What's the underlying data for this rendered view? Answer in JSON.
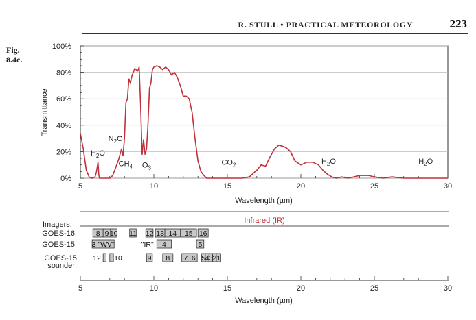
{
  "header": {
    "running_title": "R. STULL • PRACTICAL METEOROLOGY",
    "page_number": "223"
  },
  "figure": {
    "label_line1": "Fig.",
    "label_line2": "8.4c."
  },
  "chart_data": {
    "type": "line",
    "xlabel": "Wavelength (µm)",
    "ylabel": "Transmittance",
    "xlim": [
      5,
      30
    ],
    "ylim": [
      0,
      100
    ],
    "x_ticks": [
      "5",
      "10",
      "15",
      "20",
      "25",
      "30"
    ],
    "y_ticks": [
      "0%",
      "20%",
      "40%",
      "60%",
      "80%",
      "100%"
    ],
    "line_color": "#c0303a",
    "series": [
      {
        "x": [
          5.0,
          5.2,
          5.4,
          5.6,
          5.8,
          6.0,
          6.1,
          6.2,
          6.25,
          6.3,
          6.4,
          6.6,
          6.8,
          7.0,
          7.2,
          7.4,
          7.6,
          7.8,
          7.9,
          8.0,
          8.1,
          8.2,
          8.3,
          8.4,
          8.5,
          8.6,
          8.7,
          8.8,
          8.9,
          9.0,
          9.1,
          9.2,
          9.3,
          9.4,
          9.5,
          9.6,
          9.7,
          9.8,
          9.9,
          10.0,
          10.2,
          10.4,
          10.6,
          10.8,
          11.0,
          11.2,
          11.4,
          11.6,
          11.8,
          12.0,
          12.2,
          12.4,
          12.6,
          12.8,
          13.0,
          13.2,
          13.4,
          13.6,
          13.8,
          14.0,
          14.2,
          14.5,
          15.0,
          16.0,
          16.5,
          17.0,
          17.3,
          17.6,
          17.9,
          18.2,
          18.5,
          18.8,
          19.0,
          19.3,
          19.6,
          20.0,
          20.4,
          20.8,
          21.2,
          21.5,
          21.8,
          22.1,
          22.4,
          22.8,
          23.2,
          23.6,
          24.0,
          24.6,
          25.0,
          25.6,
          26.2,
          27.0,
          28.0,
          29.0,
          30.0
        ],
        "y": [
          34,
          22,
          6,
          1,
          0,
          1,
          5,
          12,
          3,
          0,
          0,
          0,
          0,
          0,
          2,
          8,
          14,
          22,
          17,
          30,
          57,
          60,
          75,
          72,
          77,
          80,
          83,
          82,
          81,
          84,
          55,
          18,
          29,
          18,
          22,
          40,
          68,
          72,
          82,
          84,
          85,
          84,
          82,
          84,
          82,
          78,
          80,
          76,
          70,
          62,
          62,
          60,
          50,
          30,
          13,
          5,
          2,
          0,
          0,
          0,
          0,
          0,
          0,
          0,
          1,
          6,
          10,
          9,
          16,
          22,
          25,
          24,
          23,
          20,
          13,
          10,
          12,
          12,
          10,
          6,
          3,
          1,
          0,
          1,
          0,
          1,
          2,
          2,
          1,
          0,
          1,
          0,
          0,
          0,
          0
        ]
      }
    ],
    "annotations": [
      {
        "text": "H",
        "sub": "2",
        "tail": "O",
        "x": 5.7,
        "y": 17
      },
      {
        "text": "N",
        "sub": "2",
        "tail": "O",
        "x": 6.9,
        "y": 28
      },
      {
        "text": "CH",
        "sub": "4",
        "tail": "",
        "x": 7.6,
        "y": 9
      },
      {
        "text": "O",
        "sub": "3",
        "tail": "",
        "x": 9.2,
        "y": 8
      },
      {
        "text": "CO",
        "sub": "2",
        "tail": "",
        "x": 14.6,
        "y": 10
      },
      {
        "text": "H",
        "sub": "2",
        "tail": "O",
        "x": 21.4,
        "y": 11
      },
      {
        "text": "H",
        "sub": "2",
        "tail": "O",
        "x": 28.0,
        "y": 11
      }
    ]
  },
  "imagers_panel": {
    "title": "Infrared (IR)",
    "imagers_label": "Imagers:",
    "xlabel": "Wavelength (µm)",
    "x_ticks": [
      "5",
      "10",
      "15",
      "20",
      "25",
      "30"
    ],
    "rows": [
      {
        "label": "GOES-16:",
        "bands": [
          {
            "text": "8",
            "x0": 5.85,
            "x1": 6.55,
            "filled": true
          },
          {
            "text": "9",
            "x0": 6.55,
            "x1": 7.05,
            "filled": true
          },
          {
            "text": "10",
            "x0": 7.05,
            "x1": 7.5,
            "filled": true
          },
          {
            "text": "11",
            "x0": 8.35,
            "x1": 8.8,
            "filled": true
          },
          {
            "text": "12",
            "x0": 9.45,
            "x1": 9.95,
            "filled": true
          },
          {
            "text": "13",
            "x0": 10.1,
            "x1": 10.75,
            "filled": true
          },
          {
            "text": "14",
            "x0": 10.75,
            "x1": 11.8,
            "filled": true
          },
          {
            "text": "15",
            "x0": 11.85,
            "x1": 12.9,
            "filled": true
          },
          {
            "text": "16",
            "x0": 13.0,
            "x1": 13.7,
            "filled": true
          }
        ]
      },
      {
        "label": "GOES-15:",
        "bands": [
          {
            "text": "3 \"WV\"",
            "x0": 5.8,
            "x1": 7.3,
            "filled": true
          },
          {
            "text": "\"IR\"",
            "x0": 9.1,
            "x1": 10.2,
            "filled": false
          },
          {
            "text": "4",
            "x0": 10.2,
            "x1": 11.2,
            "filled": true
          },
          {
            "text": "5",
            "x0": 12.9,
            "x1": 13.4,
            "filled": true
          }
        ]
      },
      {
        "label": "GOES-15",
        "label2": "sounder:",
        "bands": [
          {
            "text": "12",
            "x0": 5.8,
            "x1": 6.55,
            "filled": false
          },
          {
            "text": "",
            "x0": 6.55,
            "x1": 6.75,
            "filled": true
          },
          {
            "text": "",
            "x0": 7.0,
            "x1": 7.25,
            "filled": true
          },
          {
            "text": "10",
            "x0": 7.25,
            "x1": 7.75,
            "filled": false
          },
          {
            "text": "9",
            "x0": 9.5,
            "x1": 9.9,
            "filled": true
          },
          {
            "text": "8",
            "x0": 10.6,
            "x1": 11.3,
            "filled": true
          },
          {
            "text": "7",
            "x0": 11.9,
            "x1": 12.45,
            "filled": true
          },
          {
            "text": "6",
            "x0": 12.45,
            "x1": 12.95,
            "filled": true
          },
          {
            "text": "5",
            "x0": 13.25,
            "x1": 13.5,
            "filled": true
          },
          {
            "text": "4",
            "x0": 13.5,
            "x1": 13.75,
            "filled": true
          },
          {
            "text": "3",
            "x0": 13.75,
            "x1": 14.0,
            "filled": true
          },
          {
            "text": "2",
            "x0": 14.0,
            "x1": 14.25,
            "filled": true
          },
          {
            "text": "1",
            "x0": 14.25,
            "x1": 14.55,
            "filled": true
          }
        ]
      }
    ]
  }
}
